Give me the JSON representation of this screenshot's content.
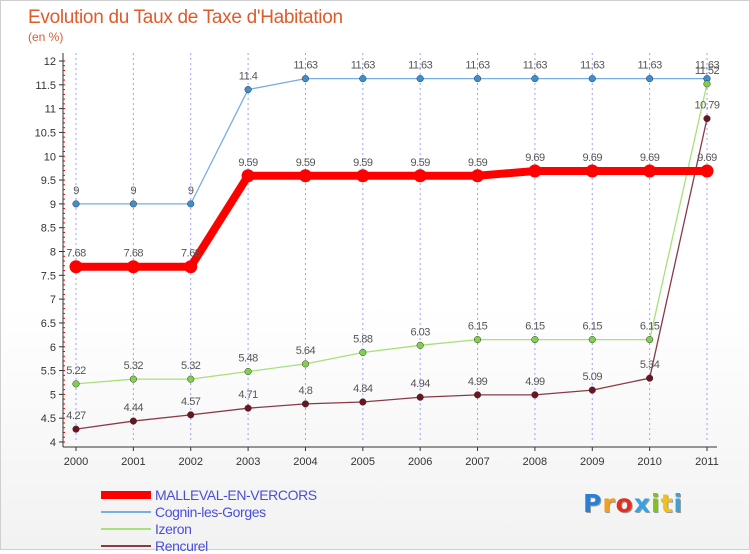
{
  "title": "Evolution du Taux de Taxe d'Habitation",
  "unit": "(en %)",
  "logo": {
    "text": "Proxiti",
    "letter_colors": [
      "#2a7fd4",
      "#f0a020",
      "#e03020",
      "#3aa0e0",
      "#80c020",
      "#f0c020",
      "#40a0d0"
    ]
  },
  "colors": {
    "grid": "#9aa0ff",
    "axis": "#333333",
    "tick_red": "#e00000"
  },
  "chart_data": {
    "type": "line",
    "x": [
      "2000",
      "2001",
      "2002",
      "2003",
      "2004",
      "2005",
      "2006",
      "2007",
      "2008",
      "2009",
      "2010",
      "2011"
    ],
    "ylim": [
      4,
      12
    ],
    "yticks": [
      "4",
      "4.5",
      "5",
      "5.5",
      "6",
      "6.5",
      "7",
      "7.5",
      "8",
      "8.5",
      "9",
      "9.5",
      "10",
      "10.5",
      "11",
      "11.5",
      "12"
    ],
    "grid": "vertical dashed",
    "legend_position": "bottom-left",
    "series": [
      {
        "name": "MALLEVAL-EN-VERCORS",
        "values": [
          7.68,
          7.68,
          7.68,
          9.59,
          9.59,
          9.59,
          9.59,
          9.59,
          9.69,
          9.69,
          9.69,
          9.69
        ],
        "labels": [
          "7.68",
          "7.68",
          "7.68",
          "9.59",
          "9.59",
          "9.59",
          "9.59",
          "9.59",
          "9.69",
          "9.69",
          "9.69",
          "9.69"
        ],
        "color": "#ff0000",
        "marker_color": "#ff0000",
        "bold": true
      },
      {
        "name": "Cognin-les-Gorges",
        "values": [
          9,
          9,
          9,
          11.4,
          11.63,
          11.63,
          11.63,
          11.63,
          11.63,
          11.63,
          11.63,
          11.63
        ],
        "labels": [
          "9",
          "9",
          "9",
          "11.4",
          "11.63",
          "11.63",
          "11.63",
          "11.63",
          "11.63",
          "11.63",
          "11.63",
          "11.63"
        ],
        "color": "#79aee0",
        "marker_color": "#3d8fd1",
        "bold": false
      },
      {
        "name": "Izeron",
        "values": [
          5.22,
          5.32,
          5.32,
          5.48,
          5.64,
          5.88,
          6.03,
          6.15,
          6.15,
          6.15,
          6.15,
          11.52
        ],
        "labels": [
          "5.22",
          "5.32",
          "5.32",
          "5.48",
          "5.64",
          "5.88",
          "6.03",
          "6.15",
          "6.15",
          "6.15",
          "6.15",
          "11.52"
        ],
        "color": "#a8e07a",
        "marker_color": "#7fd14a",
        "bold": false
      },
      {
        "name": "Rencurel",
        "values": [
          4.27,
          4.44,
          4.57,
          4.71,
          4.8,
          4.84,
          4.94,
          4.99,
          4.99,
          5.09,
          5.34,
          10.79
        ],
        "labels": [
          "4.27",
          "4.44",
          "4.57",
          "4.71",
          "4.8",
          "4.84",
          "4.94",
          "4.99",
          "4.99",
          "5.09",
          "5.34",
          "10.79"
        ],
        "color": "#8a3a46",
        "marker_color": "#6b1520",
        "bold": false
      }
    ]
  }
}
